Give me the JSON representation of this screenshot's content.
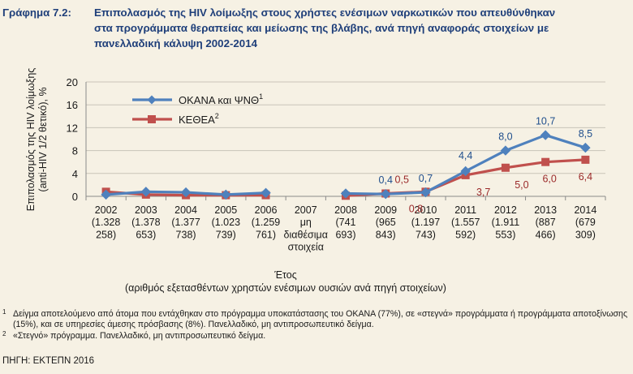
{
  "title": {
    "label": "Γράφημα 7.2:",
    "line1": "Επιπολασμός της HIV λοίμωξης στους χρήστες ενέσιμων ναρκωτικών που απευθύνθηκαν",
    "line2": "στα προγράμματα θεραπείας και μείωσης της βλάβης, ανά πηγή αναφοράς στοιχείων με",
    "line3": "πανελλαδική κάλυψη 2002-2014"
  },
  "chart_data": {
    "type": "line",
    "ylabel_lines": [
      "Επιπολασμός της HIV λοίμωξης",
      "(anti-HIV 1/2 θετικό), %"
    ],
    "xlabel_lines": [
      "Έτος",
      "(αριθμός εξετασθέντων χρηστών ενέσιμων ουσιών ανά πηγή στοιχείων)"
    ],
    "ylim": [
      0,
      20
    ],
    "yticks": [
      0,
      4,
      8,
      12,
      16,
      20
    ],
    "categories": [
      {
        "lines": [
          "2002",
          "(1.328",
          "258)"
        ]
      },
      {
        "lines": [
          "2003",
          "(1.378",
          "653)"
        ]
      },
      {
        "lines": [
          "2004",
          "(1.377",
          "738)"
        ]
      },
      {
        "lines": [
          "2005",
          "(1.023",
          "739)"
        ]
      },
      {
        "lines": [
          "2006",
          "(1.259",
          "761)"
        ]
      },
      {
        "lines": [
          "2007",
          "μη",
          "διαθέσιμα",
          "στοιχεία"
        ]
      },
      {
        "lines": [
          "2008",
          "(741",
          "693)"
        ]
      },
      {
        "lines": [
          "2009",
          "(965",
          "843)"
        ]
      },
      {
        "lines": [
          "2010",
          "(1.197",
          "743)"
        ]
      },
      {
        "lines": [
          "2011",
          "(1.557",
          "592)"
        ]
      },
      {
        "lines": [
          "2012",
          "(1.911",
          "553)"
        ]
      },
      {
        "lines": [
          "2013",
          "(887",
          "466)"
        ]
      },
      {
        "lines": [
          "2014",
          "(679",
          "309)"
        ]
      }
    ],
    "legend_position": "top-left",
    "series": [
      {
        "name": "ΟΚΑΝΑ και ΨΝΘ",
        "name_sup": "1",
        "color": "#4f81bd",
        "marker": "diamond",
        "values": [
          0.3,
          0.8,
          0.7,
          0.3,
          0.6,
          null,
          0.5,
          0.4,
          0.7,
          4.4,
          8.0,
          10.7,
          8.5
        ],
        "labels": [
          null,
          null,
          null,
          null,
          null,
          null,
          null,
          "0,4",
          "0,7",
          "4,4",
          "8,0",
          "10,7",
          "8,5"
        ]
      },
      {
        "name": "ΚΕΘΕΑ",
        "name_sup": "2",
        "color": "#c0504d",
        "marker": "square",
        "values": [
          0.8,
          0.3,
          0.2,
          0.2,
          0.2,
          null,
          0.1,
          0.5,
          0.8,
          3.7,
          5.0,
          6.0,
          6.4
        ],
        "labels": [
          null,
          null,
          null,
          null,
          null,
          null,
          null,
          "0,5",
          "0,8",
          "3,7",
          "5,0",
          "6,0",
          "6,4"
        ]
      }
    ]
  },
  "footnotes": [
    {
      "sup": "1",
      "text": "Δείγμα αποτελούμενο από άτομα που εντάχθηκαν στο πρόγραμμα υποκατάστασης του ΟΚΑΝΑ (77%), σε «στεγνά» προγράμματα ή προγράμματα αποτοξίνωσης (15%), και σε υπηρεσίες άμεσης πρόσβασης (8%). Πανελλαδικό, μη αντιπροσωπευτικό δείγμα."
    },
    {
      "sup": "2",
      "text": "«Στεγνό» πρόγραμμα. Πανελλαδικό, μη αντιπροσωπευτικό δείγμα."
    }
  ],
  "source": "ΠΗΓΗ: ΕΚΤΕΠΝ 2016"
}
